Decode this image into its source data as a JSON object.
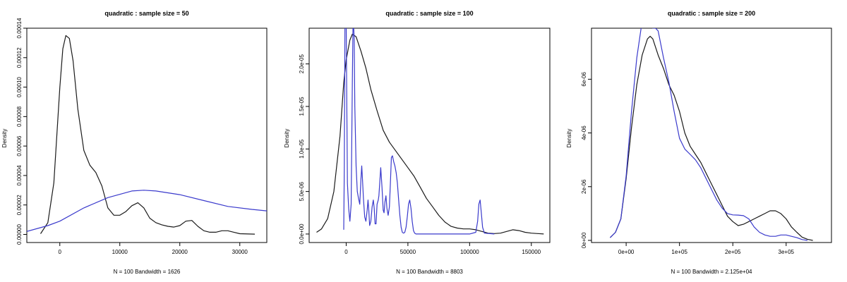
{
  "colors": {
    "series_black": "#1a1a1a",
    "series_blue": "#3a3acc",
    "frame": "#000000"
  },
  "chart_data": [
    {
      "type": "line",
      "title": "quadratic : sample size = 50",
      "xlabel": "N = 100   Bandwidth = 1626",
      "ylabel": "Density",
      "xlim": [
        -5500,
        34500
      ],
      "ylim": [
        -5.5e-06,
        0.00014
      ],
      "xticks": [
        0,
        10000,
        20000,
        30000
      ],
      "xtick_labels": [
        "0",
        "10000",
        "20000",
        "30000"
      ],
      "yticks": [
        0,
        2e-05,
        4e-05,
        6e-05,
        8e-05,
        0.0001,
        0.00012,
        0.00014
      ],
      "ytick_labels": [
        "0.00000",
        "0.00002",
        "0.00004",
        "0.00006",
        "0.00008",
        "0.00010",
        "0.00012",
        "0.00014"
      ],
      "series": [
        {
          "color": "#1a1a1a",
          "x": [
            -3200,
            -2000,
            -1000,
            0,
            500,
            1000,
            1600,
            2200,
            3000,
            4000,
            5000,
            6000,
            7000,
            8000,
            9000,
            10000,
            11000,
            12000,
            13000,
            14000,
            15000,
            16000,
            17000,
            18000,
            19000,
            20000,
            21000,
            22000,
            23000,
            24000,
            25000,
            26000,
            27000,
            28000,
            29000,
            30000,
            32500
          ],
          "y": [
            5e-07,
            8e-06,
            3.5e-05,
            0.0001,
            0.000126,
            0.000135,
            0.000133,
            0.000118,
            8.5e-05,
            5.7e-05,
            4.7e-05,
            4.2e-05,
            3.3e-05,
            1.8e-05,
            1.3e-05,
            1.3e-05,
            1.55e-05,
            1.95e-05,
            2.15e-05,
            1.8e-05,
            1.1e-05,
            8e-06,
            6.5e-06,
            5.5e-06,
            5e-06,
            6e-06,
            9e-06,
            9.5e-06,
            5.5e-06,
            2.5e-06,
            1.5e-06,
            1.5e-06,
            2.5e-06,
            2.5e-06,
            1.5e-06,
            5e-07,
            2e-07
          ]
        },
        {
          "color": "#3a3acc",
          "x": [
            -5500,
            -2000,
            0,
            4000,
            8000,
            12000,
            14000,
            16000,
            20000,
            24000,
            28000,
            32000,
            34500
          ],
          "y": [
            2e-06,
            6e-06,
            9e-06,
            1.8e-05,
            2.5e-05,
            2.95e-05,
            3e-05,
            2.95e-05,
            2.7e-05,
            2.3e-05,
            1.9e-05,
            1.7e-05,
            1.6e-05
          ]
        }
      ]
    },
    {
      "type": "line",
      "title": "quadratic : sample size = 100",
      "xlabel": "N = 100   Bandwidth = 8803",
      "ylabel": "Density",
      "xlim": [
        -30000,
        165000
      ],
      "ylim": [
        -1e-06,
        2.42e-05
      ],
      "xticks": [
        0,
        50000,
        100000,
        150000
      ],
      "xtick_labels": [
        "0",
        "50000",
        "100000",
        "150000"
      ],
      "yticks": [
        0,
        5e-06,
        1e-05,
        1.5e-05,
        2e-05
      ],
      "ytick_labels": [
        "0.0e+00",
        "5.0e-06",
        "1.0e-05",
        "1.5e-05",
        "2.0e-05"
      ],
      "series": [
        {
          "color": "#1a1a1a",
          "x": [
            -24000,
            -20000,
            -15000,
            -10000,
            -5000,
            -2000,
            0,
            3000,
            5000,
            8000,
            12000,
            16000,
            20000,
            25000,
            30000,
            35000,
            40000,
            45000,
            50000,
            55000,
            60000,
            65000,
            70000,
            75000,
            80000,
            85000,
            90000,
            95000,
            100000,
            105000,
            110000,
            115000,
            120000,
            125000,
            130000,
            135000,
            140000,
            145000,
            150000,
            155000,
            160000
          ],
          "y": [
            2e-07,
            6e-07,
            1.8e-06,
            5e-06,
            1.15e-05,
            1.78e-05,
            2.05e-05,
            2.28e-05,
            2.35e-05,
            2.32e-05,
            2.15e-05,
            1.95e-05,
            1.7e-05,
            1.45e-05,
            1.22e-05,
            1.08e-05,
            9.8e-06,
            8.8e-06,
            7.8e-06,
            6.8e-06,
            5.5e-06,
            4.2e-06,
            3.2e-06,
            2.2e-06,
            1.4e-06,
            9e-07,
            7e-07,
            6e-07,
            6e-07,
            5e-07,
            3e-07,
            1e-07,
            5e-08,
            1e-07,
            3e-07,
            5e-07,
            4e-07,
            2e-07,
            1e-07,
            5e-08,
            0.0
          ]
        },
        {
          "color": "#3a3acc",
          "x": [
            -2000,
            -1500,
            -1000,
            0,
            1000,
            2000,
            3000,
            4000,
            5000,
            5500,
            6000,
            6500,
            7000,
            8000,
            9000,
            10000,
            11000,
            12000,
            12600,
            13200,
            14000,
            15000,
            16000,
            17000,
            17700,
            18300,
            19000,
            20000,
            21000,
            22000,
            22700,
            23400,
            24200,
            25000,
            26000,
            26500,
            27200,
            28000,
            29000,
            30000,
            30700,
            31400,
            32200,
            33000,
            34000,
            35000,
            35800,
            36600,
            37500,
            38500,
            39500,
            40500,
            41500,
            42500,
            43500,
            44500,
            45500,
            46500,
            47500,
            48500,
            49500,
            50500,
            51500,
            52500,
            53500,
            54500,
            55500,
            56500,
            57500,
            60000,
            80000,
            100000,
            105000,
            106500,
            107500,
            108500,
            109500,
            110500,
            112000,
            120000
          ],
          "y": [
            5e-07,
            8e-06,
            2.45e-05,
            2.45e-05,
            6e-06,
            3e-06,
            1.5e-06,
            3.5e-06,
            1.8e-05,
            2.45e-05,
            2.45e-05,
            2.3e-05,
            1.5e-05,
            8e-06,
            5e-06,
            4.2e-06,
            3.5e-06,
            6.5e-06,
            8e-06,
            6.5e-06,
            4.2e-06,
            2e-06,
            1.5e-06,
            2.8e-06,
            4e-06,
            2.8e-06,
            1e-06,
            1.5e-06,
            3.2e-06,
            4e-06,
            3e-06,
            1.2e-06,
            1.2e-06,
            3.5e-06,
            4e-06,
            4.5e-06,
            6e-06,
            7.8e-06,
            5.5e-06,
            2.8e-06,
            2.5e-06,
            3.8e-06,
            4.5e-06,
            3e-06,
            2.2e-06,
            3.2e-06,
            6e-06,
            9e-06,
            9.2e-06,
            8.5e-06,
            8e-06,
            7.2e-06,
            6e-06,
            4e-06,
            2.2e-06,
            8e-07,
            2e-07,
            1e-07,
            2e-07,
            8e-07,
            2e-06,
            3.5e-06,
            4e-06,
            3e-06,
            1.5e-06,
            4e-07,
            1e-07,
            0.0,
            0.0,
            0.0,
            0.0,
            0.0,
            2e-07,
            1.5e-06,
            3.5e-06,
            4e-06,
            2.5e-06,
            8e-07,
            1e-07,
            0.0
          ]
        }
      ]
    },
    {
      "type": "line",
      "title": "quadratic : sample size = 200",
      "xlabel": "N = 100   Bandwidth = 2.125e+04",
      "ylabel": "Density",
      "xlim": [
        -65000,
        385000
      ],
      "ylim": [
        -8e-08,
        7.9e-06
      ],
      "xticks": [
        0,
        100000,
        200000,
        300000
      ],
      "xtick_labels": [
        "0e+00",
        "1e+05",
        "2e+05",
        "3e+05"
      ],
      "yticks": [
        0,
        2e-06,
        4e-06,
        6e-06
      ],
      "ytick_labels": [
        "0e+00",
        "2e-06",
        "4e-06",
        "6e-06"
      ],
      "series": [
        {
          "color": "#1a1a1a",
          "x": [
            -30000,
            -20000,
            -10000,
            0,
            10000,
            20000,
            30000,
            40000,
            45000,
            50000,
            60000,
            70000,
            80000,
            90000,
            100000,
            110000,
            120000,
            130000,
            140000,
            150000,
            160000,
            170000,
            180000,
            190000,
            200000,
            210000,
            220000,
            230000,
            240000,
            250000,
            260000,
            270000,
            280000,
            290000,
            300000,
            310000,
            320000,
            330000,
            340000,
            350000
          ],
          "y": [
            1e-07,
            3e-07,
            8e-07,
            2.3e-06,
            4.2e-06,
            5.8e-06,
            6.9e-06,
            7.5e-06,
            7.6e-06,
            7.5e-06,
            6.9e-06,
            6.4e-06,
            5.8e-06,
            5.4e-06,
            4.8e-06,
            4e-06,
            3.5e-06,
            3.2e-06,
            2.9e-06,
            2.5e-06,
            2.1e-06,
            1.7e-06,
            1.3e-06,
            9e-07,
            7e-07,
            5.5e-07,
            6e-07,
            7e-07,
            8e-07,
            9e-07,
            1e-06,
            1.1e-06,
            1.1e-06,
            1e-06,
            8e-07,
            5e-07,
            3e-07,
            1.2e-07,
            4e-08,
            0.0
          ]
        },
        {
          "color": "#3a3acc",
          "x": [
            -30000,
            -20000,
            -10000,
            0,
            10000,
            20000,
            28000,
            34000,
            40000,
            45000,
            50000,
            55000,
            60000,
            70000,
            80000,
            90000,
            100000,
            110000,
            120000,
            130000,
            140000,
            150000,
            160000,
            170000,
            180000,
            190000,
            200000,
            210000,
            220000,
            230000,
            240000,
            250000,
            260000,
            270000,
            280000,
            290000,
            300000,
            310000,
            320000,
            330000,
            340000
          ],
          "y": [
            1e-07,
            3e-07,
            8e-07,
            2.4e-06,
            4.8e-06,
            6.8e-06,
            7.9e-06,
            8.2e-06,
            8.2e-06,
            8.2e-06,
            7.9e-06,
            7.9e-06,
            7.8e-06,
            6.8e-06,
            5.9e-06,
            4.8e-06,
            3.8e-06,
            3.4e-06,
            3.2e-06,
            3e-06,
            2.7e-06,
            2.3e-06,
            1.9e-06,
            1.5e-06,
            1.2e-06,
            1e-06,
            9.5e-07,
            9.4e-07,
            9.2e-07,
            8e-07,
            5e-07,
            3e-07,
            2e-07,
            1.5e-07,
            1.5e-07,
            2e-07,
            2e-07,
            1.5e-07,
            1e-07,
            3e-08,
            0.0
          ]
        }
      ]
    }
  ]
}
